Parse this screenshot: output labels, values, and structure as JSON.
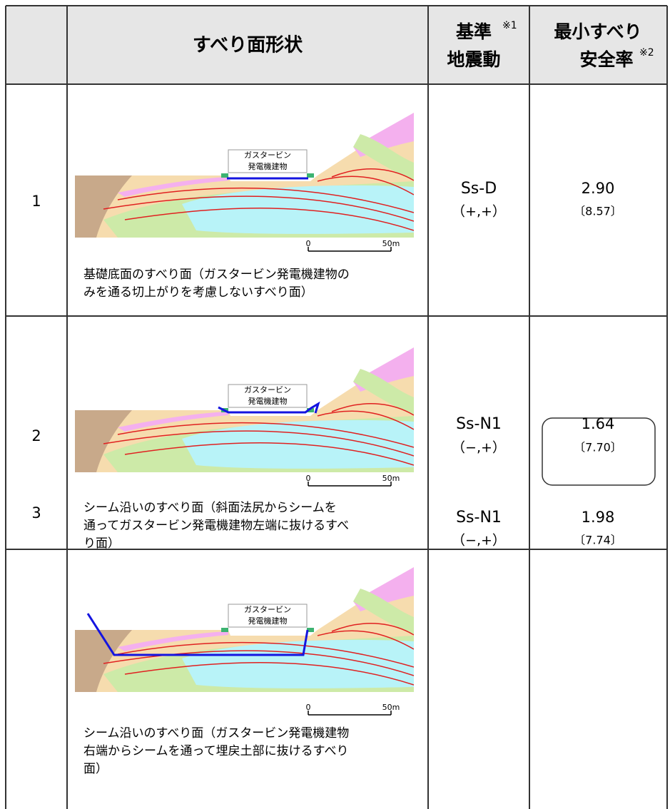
{
  "header": {
    "shape": "すべり面形状",
    "motion": [
      "基準",
      "地震動"
    ],
    "motion_note": "※1",
    "factor": [
      "最小すべり",
      "安全率"
    ],
    "factor_note": "※2"
  },
  "rows": [
    {
      "no": "1",
      "building": [
        "ガスタービン",
        "発電機建物"
      ],
      "scale": [
        "0",
        "50m"
      ],
      "caption": [
        "基礎底面のすべり面（ガスタービン発電機建物の",
        "みを通る切上がりを考慮しないすべり面）"
      ],
      "motion": "Ss-D",
      "sign": "（+,+）",
      "factor": "2.90",
      "factor_sub": "〔8.57〕"
    },
    {
      "no": "2",
      "building": [
        "ガスタービン",
        "発電機建物"
      ],
      "scale": [
        "0",
        "50m"
      ],
      "caption": [
        "シーム沿いのすべり面（斜面法尻からシームを",
        "通ってガスタービン発電機建物左端に抜けるすべ",
        "り面）"
      ],
      "motion": "Ss-N1",
      "sign": "（−,+）",
      "factor": "1.64",
      "factor_sub": "〔7.70〕"
    },
    {
      "no": "3",
      "building": [
        "ガスタービン",
        "発電機建物"
      ],
      "scale": [
        "0",
        "50m"
      ],
      "caption": [
        "シーム沿いのすべり面（ガスタービン発電機建物",
        "右端からシームを通って埋戻土部に抜けるすべり",
        "面）"
      ],
      "motion": "Ss-N1",
      "sign": "（−,+）",
      "factor": "1.98",
      "factor_sub": "〔7.74〕"
    }
  ]
}
